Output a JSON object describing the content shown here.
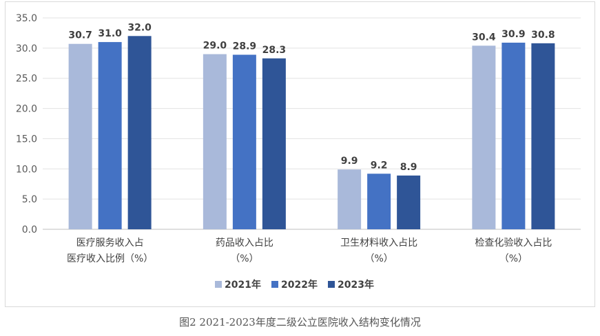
{
  "chart_data": {
    "type": "bar",
    "title": "",
    "xlabel": "",
    "ylabel": "",
    "ylim": [
      0,
      35
    ],
    "yticks": [
      "0.0",
      "5.0",
      "10.0",
      "15.0",
      "20.0",
      "25.0",
      "30.0",
      "35.0"
    ],
    "grid": true,
    "legend": "bottom",
    "categories": [
      [
        "医疗服务收入占",
        "医疗收入比例（%）"
      ],
      [
        "药品收入占比",
        "（%）"
      ],
      [
        "卫生材料收入占比",
        "（%）"
      ],
      [
        "检查化验收入占比",
        "（%）"
      ]
    ],
    "series": [
      {
        "name": "2021年",
        "color": "#a9b9da",
        "values": [
          30.7,
          29.0,
          9.9,
          30.4
        ],
        "labels": [
          "30.7",
          "29.0",
          "9.9",
          "30.4"
        ]
      },
      {
        "name": "2022年",
        "color": "#4472c4",
        "values": [
          31.0,
          28.9,
          9.2,
          30.9
        ],
        "labels": [
          "31.0",
          "28.9",
          "9.2",
          "30.9"
        ]
      },
      {
        "name": "2023年",
        "color": "#2f5597",
        "values": [
          32.0,
          28.3,
          8.9,
          30.8
        ],
        "labels": [
          "32.0",
          "28.3",
          "8.9",
          "30.8"
        ]
      }
    ]
  },
  "caption": "图2 2021-2023年度二级公立医院收入结构变化情况"
}
